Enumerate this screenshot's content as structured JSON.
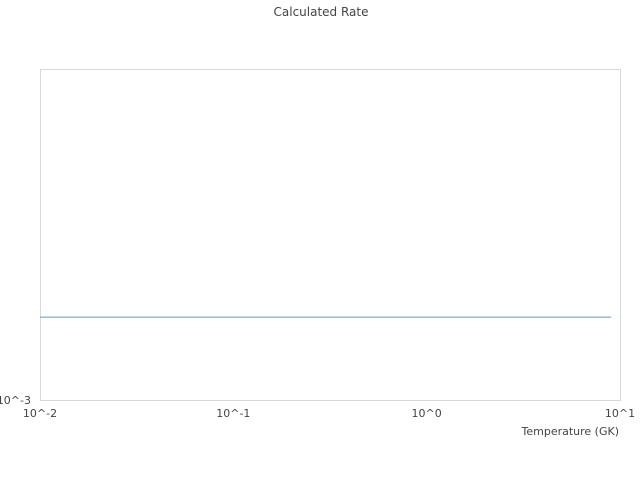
{
  "chart_data": {
    "type": "line",
    "title": "Calculated Rate",
    "xlabel": "Temperature (GK)",
    "ylabel": "",
    "xscale": "log",
    "yscale": "log",
    "xlim": [
      0.01,
      10
    ],
    "ylim": [
      0.001,
      0.01
    ],
    "x_ticks": [
      {
        "value": 0.01,
        "label": "10^-2"
      },
      {
        "value": 0.1,
        "label": "10^-1"
      },
      {
        "value": 1,
        "label": "10^0"
      },
      {
        "value": 10,
        "label": "10^1"
      }
    ],
    "y_ticks": [
      {
        "value": 0.001,
        "label": "10^-3"
      }
    ],
    "grid": false,
    "series": [
      {
        "color": "#5b9bd5",
        "x": [
          0.01,
          9
        ],
        "y": [
          0.00178,
          0.00178
        ]
      }
    ]
  }
}
